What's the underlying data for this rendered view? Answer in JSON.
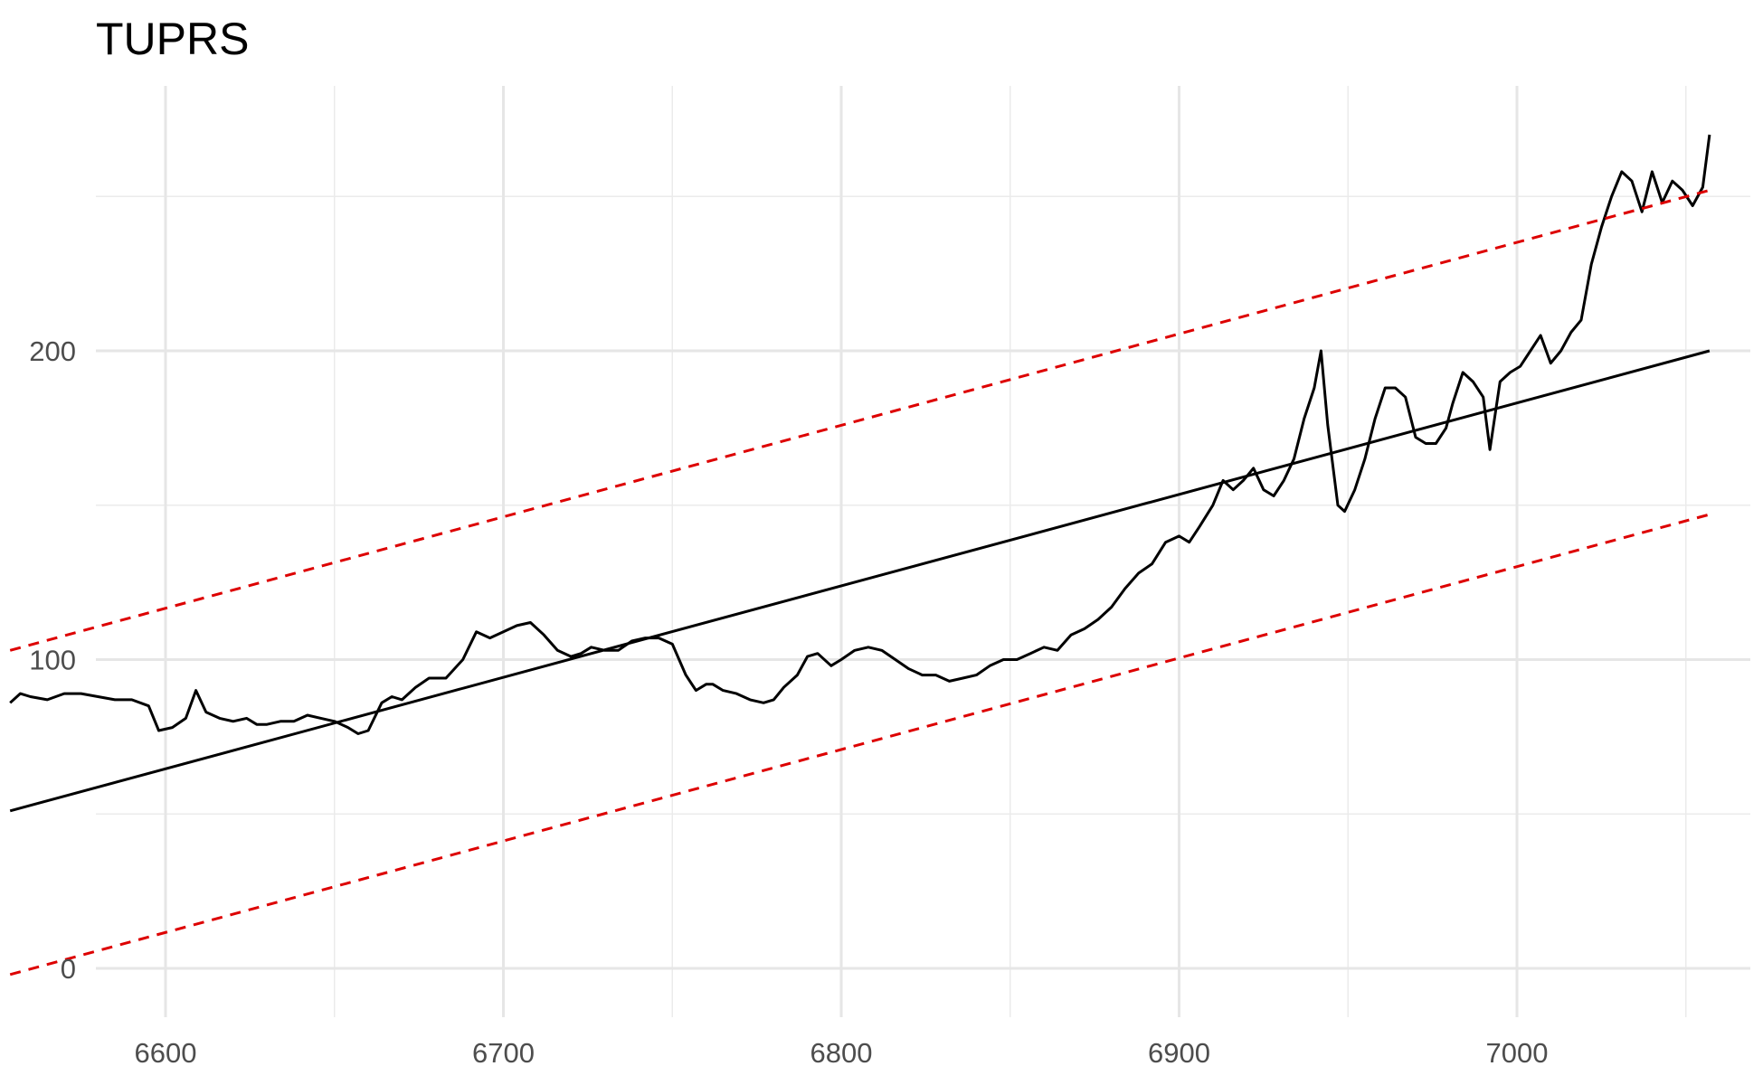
{
  "chart_data": {
    "type": "line",
    "title": "TUPRS",
    "xlabel": "",
    "ylabel": "",
    "xlim": [
      6550,
      7065
    ],
    "ylim": [
      -10,
      285
    ],
    "x_ticks": [
      6600,
      6700,
      6800,
      6900,
      7000
    ],
    "x_tick_labels": [
      "6600",
      "6700",
      "6800",
      "6900",
      "7000"
    ],
    "y_ticks": [
      0,
      100,
      200
    ],
    "y_tick_labels": [
      "0",
      "100",
      "200"
    ],
    "grid": true,
    "legend": "none",
    "series": [
      {
        "color": "#000000",
        "style": "solid",
        "x": [
          6554,
          6557,
          6560,
          6565,
          6570,
          6575,
          6580,
          6585,
          6590,
          6595,
          6598,
          6602,
          6606,
          6609,
          6612,
          6616,
          6620,
          6624,
          6627,
          6630,
          6634,
          6638,
          6642,
          6646,
          6650,
          6654,
          6657,
          6660,
          6664,
          6667,
          6670,
          6674,
          6678,
          6683,
          6688,
          6692,
          6696,
          6700,
          6704,
          6708,
          6712,
          6716,
          6720,
          6723,
          6726,
          6730,
          6734,
          6738,
          6742,
          6746,
          6750,
          6754,
          6757,
          6760,
          6762,
          6765,
          6769,
          6773,
          6777,
          6780,
          6783,
          6787,
          6790,
          6793,
          6797,
          6800,
          6804,
          6808,
          6812,
          6816,
          6820,
          6824,
          6828,
          6832,
          6836,
          6840,
          6844,
          6848,
          6852,
          6856,
          6860,
          6864,
          6868,
          6872,
          6876,
          6880,
          6884,
          6888,
          6892,
          6896,
          6900,
          6903,
          6906,
          6910,
          6913,
          6916,
          6919,
          6922,
          6925,
          6928,
          6931,
          6934,
          6937,
          6940,
          6942,
          6944,
          6947,
          6949,
          6952,
          6955,
          6958,
          6961,
          6964,
          6967,
          6970,
          6973,
          6976,
          6979,
          6981,
          6984,
          6987,
          6990,
          6992,
          6995,
          6998,
          7001,
          7004,
          7007,
          7010,
          7013,
          7016,
          7019,
          7022,
          7025,
          7028,
          7031,
          7034,
          7037,
          7040,
          7043,
          7046,
          7049,
          7052,
          7055,
          7057
        ],
        "y": [
          86,
          89,
          88,
          87,
          89,
          89,
          88,
          87,
          87,
          85,
          77,
          78,
          81,
          90,
          83,
          81,
          80,
          81,
          79,
          79,
          80,
          80,
          82,
          81,
          80,
          78,
          76,
          77,
          86,
          88,
          87,
          91,
          94,
          94,
          100,
          109,
          107,
          109,
          111,
          112,
          108,
          103,
          101,
          102,
          104,
          103,
          103,
          106,
          107,
          107,
          105,
          95,
          90,
          92,
          92,
          90,
          89,
          87,
          86,
          87,
          91,
          95,
          101,
          102,
          98,
          100,
          103,
          104,
          103,
          100,
          97,
          95,
          95,
          93,
          94,
          95,
          98,
          100,
          100,
          102,
          104,
          103,
          108,
          110,
          113,
          117,
          123,
          128,
          131,
          138,
          140,
          138,
          143,
          150,
          158,
          155,
          158,
          162,
          155,
          153,
          158,
          165,
          178,
          188,
          200,
          176,
          150,
          148,
          155,
          165,
          178,
          188,
          188,
          185,
          172,
          170,
          170,
          175,
          183,
          193,
          190,
          185,
          168,
          190,
          193,
          195,
          200,
          205,
          196,
          200,
          206,
          210,
          228,
          240,
          250,
          258,
          255,
          245,
          258,
          248,
          255,
          252,
          247,
          253,
          270
        ]
      },
      {
        "color": "#000000",
        "style": "solid",
        "x": [
          6554,
          7057
        ],
        "y": [
          51,
          200
        ]
      },
      {
        "color": "#dd0000",
        "style": "dashed",
        "x": [
          6554,
          7057
        ],
        "y": [
          103,
          252
        ]
      },
      {
        "color": "#dd0000",
        "style": "dashed",
        "x": [
          6554,
          7057
        ],
        "y": [
          -2,
          147
        ]
      }
    ]
  }
}
